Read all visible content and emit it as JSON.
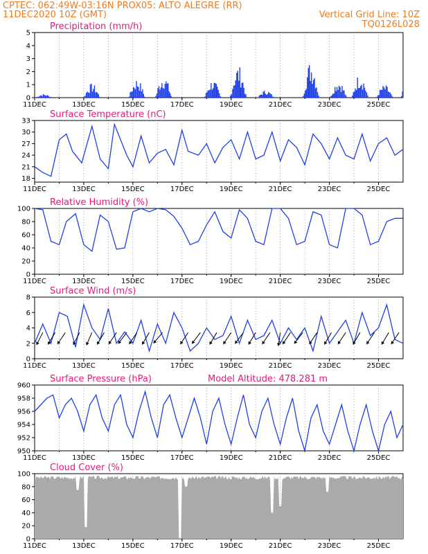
{
  "header": {
    "line1": "CPTEC:   062:49W-03:16N   PROX05: ALTO ALEGRE (RR)",
    "line2_left": "11DEC2020 10Z (GMT)",
    "line2_right": "Vertical Grid Line: 10Z",
    "line3_right": "TQ0126L028"
  },
  "colors": {
    "line": "#1f3fe6",
    "bar": "#1f3fe6",
    "cloud": "#aaaaaa",
    "title": "#e8177a",
    "header": "#f07a1e"
  },
  "chart_data": [
    {
      "type": "bar",
      "title": "Precipitation (mm/h)",
      "ylim": [
        0,
        5
      ],
      "yticks": [
        0,
        1,
        2,
        3,
        4,
        5
      ],
      "xlim_hours": [
        0,
        360
      ],
      "date_ticks": [
        "11DEC",
        "13DEC",
        "15DEC",
        "17DEC",
        "19DEC",
        "21DEC",
        "23DEC",
        "25DEC"
      ],
      "bursts": [
        {
          "day": "11DEC",
          "hour": 1,
          "peak": 0.3
        },
        {
          "day": "13DEC",
          "hour": 0,
          "peak": 1.1
        },
        {
          "day": "14DEC",
          "hour": 20,
          "peak": 1.5
        },
        {
          "day": "15DEC",
          "hour": 22,
          "peak": 1.8
        },
        {
          "day": "17DEC",
          "hour": 22,
          "peak": 1.4
        },
        {
          "day": "18DEC",
          "hour": 23,
          "peak": 2.5
        },
        {
          "day": "20DEC",
          "hour": 2,
          "peak": 0.6
        },
        {
          "day": "21DEC",
          "hour": 22,
          "peak": 2.9
        },
        {
          "day": "23DEC",
          "hour": 1,
          "peak": 1.4
        },
        {
          "day": "23DEC",
          "hour": 22,
          "peak": 1.9
        },
        {
          "day": "24DEC",
          "hour": 22,
          "peak": 1.0
        },
        {
          "day": "25DEC",
          "hour": 22,
          "peak": 1.7
        }
      ]
    },
    {
      "type": "line",
      "title": "Surface Temperature (nC)",
      "ylim": [
        17,
        33
      ],
      "yticks": [
        18,
        21,
        24,
        27,
        30,
        33
      ],
      "date_ticks": [
        "11DEC",
        "13DEC",
        "15DEC",
        "17DEC",
        "19DEC",
        "21DEC",
        "23DEC",
        "25DEC"
      ],
      "x_hours": [
        0,
        8,
        16,
        24,
        31,
        37,
        46,
        56,
        64,
        72,
        78,
        90,
        96,
        104,
        112,
        120,
        128,
        136,
        144,
        150,
        160,
        168,
        176,
        184,
        192,
        200,
        208,
        216,
        224,
        232,
        240,
        248,
        256,
        264,
        272,
        280,
        288,
        296,
        304,
        312,
        320,
        328,
        336,
        344,
        352,
        360
      ],
      "values": [
        21,
        19.5,
        18.5,
        28,
        29.5,
        25,
        22,
        31.5,
        23,
        20.5,
        32,
        24,
        21,
        29,
        22,
        24.5,
        25.5,
        21.5,
        30.5,
        25,
        24,
        27,
        22,
        26,
        28,
        23,
        30,
        23,
        24,
        30,
        22.5,
        28,
        26,
        21.5,
        29.5,
        27,
        23,
        28.5,
        24,
        23,
        29.5,
        22.5,
        27,
        28.5,
        24,
        25.5
      ]
    },
    {
      "type": "line",
      "title": "Relative Humidity (%)",
      "ylim": [
        0,
        100
      ],
      "yticks": [
        0,
        20,
        40,
        60,
        80,
        100
      ],
      "date_ticks": [
        "11DEC",
        "13DEC",
        "15DEC",
        "17DEC",
        "19DEC",
        "21DEC",
        "23DEC",
        "25DEC"
      ],
      "x_hours": [
        0,
        8,
        16,
        24,
        31,
        40,
        48,
        56,
        64,
        72,
        80,
        88,
        96,
        104,
        112,
        120,
        128,
        136,
        144,
        152,
        160,
        168,
        176,
        184,
        192,
        200,
        208,
        216,
        224,
        232,
        240,
        248,
        256,
        264,
        272,
        280,
        288,
        296,
        304,
        312,
        320,
        328,
        336,
        344,
        352,
        360
      ],
      "values": [
        100,
        98,
        50,
        45,
        80,
        92,
        45,
        35,
        90,
        80,
        38,
        40,
        95,
        100,
        95,
        100,
        98,
        88,
        70,
        45,
        50,
        75,
        95,
        65,
        55,
        98,
        85,
        50,
        45,
        100,
        100,
        85,
        45,
        50,
        95,
        90,
        45,
        40,
        100,
        100,
        90,
        45,
        50,
        80,
        85,
        85
      ]
    },
    {
      "type": "line",
      "title": "Surface Wind (m/s)",
      "ylim": [
        0,
        8
      ],
      "yticks": [
        0,
        2,
        4,
        6,
        8
      ],
      "date_ticks": [
        "11DEC",
        "13DEC",
        "15DEC",
        "17DEC",
        "19DEC",
        "21DEC",
        "23DEC",
        "25DEC"
      ],
      "x_hours": [
        0,
        8,
        16,
        24,
        32,
        40,
        48,
        56,
        64,
        72,
        80,
        88,
        96,
        104,
        112,
        120,
        128,
        136,
        144,
        152,
        160,
        168,
        176,
        184,
        192,
        200,
        208,
        216,
        224,
        232,
        240,
        248,
        256,
        264,
        272,
        280,
        288,
        296,
        304,
        312,
        320,
        328,
        336,
        344,
        352,
        360
      ],
      "values": [
        2,
        4.5,
        2,
        6,
        5.5,
        1.5,
        7,
        4,
        2.5,
        6.5,
        2,
        3.5,
        2,
        5,
        1,
        4.5,
        2,
        6,
        4,
        1,
        2,
        4,
        2.5,
        3,
        5.5,
        2,
        5,
        2.5,
        3,
        5,
        2,
        4,
        2.5,
        4,
        1,
        5.5,
        2,
        3.5,
        5,
        2,
        6,
        3,
        4,
        7,
        2.5,
        2
      ],
      "arrow_hours": [
        8,
        20,
        30,
        44,
        56,
        68,
        80,
        90,
        100,
        112,
        125,
        150,
        162,
        178,
        192,
        204,
        216,
        230,
        240,
        250,
        262,
        276,
        290,
        304,
        318,
        332,
        346,
        356
      ],
      "arrow_dirs_deg": [
        35,
        40,
        45,
        35,
        30,
        40,
        45,
        50,
        45,
        40,
        55,
        45,
        50,
        40,
        45,
        50,
        40,
        45,
        10,
        45,
        50,
        45,
        40,
        45,
        40,
        45,
        40,
        45
      ]
    },
    {
      "type": "line",
      "title": "Surface Pressure (hPa)",
      "annotation": "Model Altitude: 478.281  m",
      "ylim": [
        950,
        960
      ],
      "yticks": [
        950,
        952,
        954,
        956,
        958,
        960
      ],
      "date_ticks": [
        "11DEC",
        "13DEC",
        "15DEC",
        "17DEC",
        "19DEC",
        "21DEC",
        "23DEC",
        "25DEC"
      ],
      "x_hours": [
        0,
        6,
        12,
        18,
        24,
        30,
        36,
        42,
        48,
        54,
        60,
        66,
        72,
        78,
        84,
        90,
        96,
        102,
        108,
        114,
        120,
        126,
        132,
        138,
        144,
        150,
        156,
        162,
        168,
        174,
        180,
        186,
        192,
        198,
        204,
        210,
        216,
        222,
        228,
        234,
        240,
        246,
        252,
        258,
        264,
        270,
        276,
        282,
        288,
        294,
        300,
        306,
        312,
        318,
        324,
        330,
        336,
        342,
        348,
        354,
        360
      ],
      "values": [
        956,
        957,
        958,
        958.5,
        955,
        957,
        958,
        956,
        953,
        957,
        958.5,
        955,
        953,
        957,
        958.5,
        954,
        952,
        956,
        959,
        955,
        952,
        957,
        958.5,
        955,
        952,
        955,
        958,
        955,
        951,
        956,
        958,
        954,
        951,
        955,
        958.5,
        954,
        952,
        956,
        958,
        954,
        951,
        955,
        958,
        953,
        950,
        955,
        957,
        953,
        951,
        954,
        957,
        953,
        950,
        954,
        957,
        953,
        950,
        954,
        956,
        952,
        954
      ]
    },
    {
      "type": "bar",
      "title": "Cloud Cover (%)",
      "ylim": [
        0,
        100
      ],
      "yticks": [
        0,
        20,
        40,
        60,
        80,
        100
      ],
      "date_ticks": [
        "11DEC",
        "13DEC",
        "15DEC",
        "17DEC",
        "19DEC",
        "21DEC",
        "23DEC",
        "25DEC"
      ],
      "baseline": 95,
      "dips": [
        {
          "day": "12DEC",
          "hour": 18,
          "min": 75
        },
        {
          "day": "13DEC",
          "hour": 2,
          "min": 18
        },
        {
          "day": "16DEC",
          "hour": 22,
          "min": 1
        },
        {
          "day": "17DEC",
          "hour": 4,
          "min": 80
        },
        {
          "day": "20DEC",
          "hour": 16,
          "min": 40
        },
        {
          "day": "21DEC",
          "hour": 0,
          "min": 50
        },
        {
          "day": "22DEC",
          "hour": 22,
          "min": 72
        }
      ]
    }
  ]
}
